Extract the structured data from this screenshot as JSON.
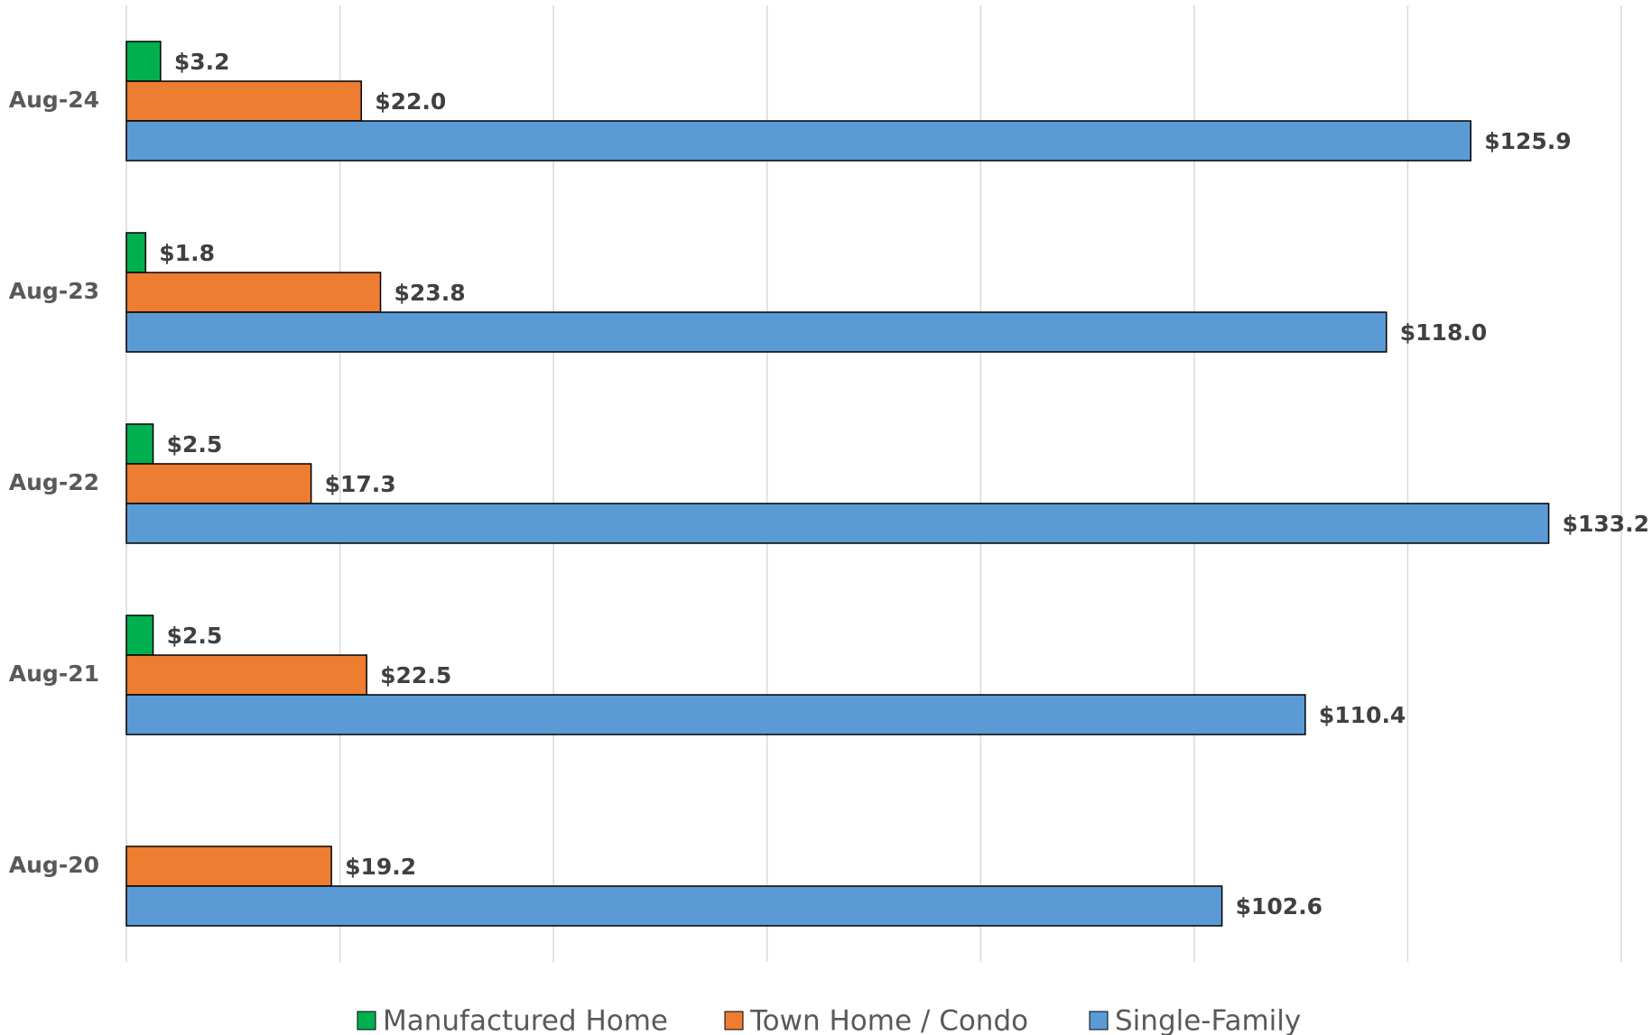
{
  "chart_data": {
    "type": "hbar",
    "categories": [
      "Aug-24",
      "Aug-23",
      "Aug-22",
      "Aug-21",
      "Aug-20"
    ],
    "series": [
      {
        "name": "Manufactured Home",
        "color": "#00b050",
        "values": [
          3.2,
          1.8,
          2.5,
          2.5,
          null
        ],
        "value_labels": [
          "$3.2",
          "$1.8",
          "$2.5",
          "$2.5",
          null
        ]
      },
      {
        "name": "Town Home / Condo",
        "color": "#ed7d31",
        "values": [
          22.0,
          23.8,
          17.3,
          22.5,
          19.2
        ],
        "value_labels": [
          "$22.0",
          "$23.8",
          "$17.3",
          "$22.5",
          "$19.2"
        ]
      },
      {
        "name": "Single-Family",
        "color": "#5b9bd5",
        "values": [
          125.9,
          118.0,
          133.2,
          110.4,
          102.6
        ],
        "value_labels": [
          "$125.9",
          "$118.0",
          "$133.2",
          "$110.4",
          "$102.6"
        ]
      }
    ],
    "xlim": [
      0,
      140
    ],
    "xticks": [
      0,
      20,
      40,
      60,
      80,
      100,
      120,
      140
    ],
    "grid": true,
    "legend": "bottom"
  }
}
